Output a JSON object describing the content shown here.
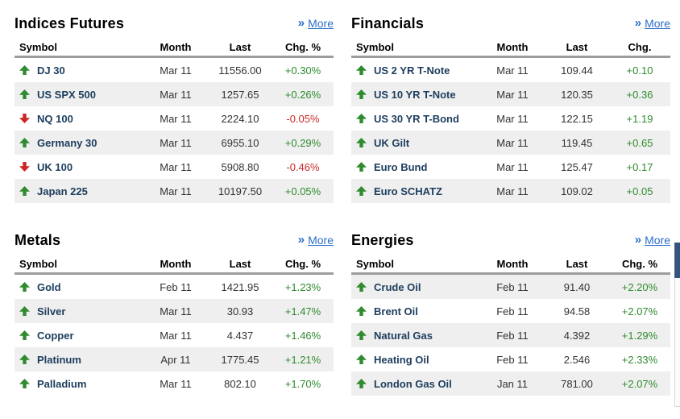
{
  "more_label": "More",
  "colors": {
    "link_blue": "#2a6dc9",
    "symbol_navy": "#1c3d5d",
    "up_green": "#2e8b2e",
    "down_red": "#cf2525",
    "positive_text": "#2e8b2e",
    "negative_text": "#cc2929",
    "row_stripe": "#efefef",
    "header_rule": "#9c9c9c"
  },
  "panels": [
    {
      "title": "Indices Futures",
      "columns": [
        "Symbol",
        "Month",
        "Last",
        "Chg. %"
      ],
      "rows": [
        {
          "direction": "up",
          "symbol": "DJ 30",
          "month": "Mar 11",
          "last": "11556.00",
          "change": "+0.30%",
          "shaded": false
        },
        {
          "direction": "up",
          "symbol": "US SPX 500",
          "month": "Mar 11",
          "last": "1257.65",
          "change": "+0.26%",
          "shaded": true
        },
        {
          "direction": "down",
          "symbol": "NQ 100",
          "month": "Mar 11",
          "last": "2224.10",
          "change": "-0.05%",
          "shaded": false
        },
        {
          "direction": "up",
          "symbol": "Germany 30",
          "month": "Mar 11",
          "last": "6955.10",
          "change": "+0.29%",
          "shaded": true
        },
        {
          "direction": "down",
          "symbol": "UK 100",
          "month": "Mar 11",
          "last": "5908.80",
          "change": "-0.46%",
          "shaded": false
        },
        {
          "direction": "up",
          "symbol": "Japan 225",
          "month": "Mar 11",
          "last": "10197.50",
          "change": "+0.05%",
          "shaded": true
        }
      ]
    },
    {
      "title": "Financials",
      "columns": [
        "Symbol",
        "Month",
        "Last",
        "Chg."
      ],
      "rows": [
        {
          "direction": "up",
          "symbol": "US 2 YR T-Note",
          "month": "Mar 11",
          "last": "109.44",
          "change": "+0.10",
          "shaded": false
        },
        {
          "direction": "up",
          "symbol": "US 10 YR T-Note",
          "month": "Mar 11",
          "last": "120.35",
          "change": "+0.36",
          "shaded": true
        },
        {
          "direction": "up",
          "symbol": "US 30 YR T-Bond",
          "month": "Mar 11",
          "last": "122.15",
          "change": "+1.19",
          "shaded": false
        },
        {
          "direction": "up",
          "symbol": "UK Gilt",
          "month": "Mar 11",
          "last": "119.45",
          "change": "+0.65",
          "shaded": true
        },
        {
          "direction": "up",
          "symbol": "Euro Bund",
          "month": "Mar 11",
          "last": "125.47",
          "change": "+0.17",
          "shaded": false
        },
        {
          "direction": "up",
          "symbol": "Euro SCHATZ",
          "month": "Mar 11",
          "last": "109.02",
          "change": "+0.05",
          "shaded": true
        }
      ]
    },
    {
      "title": "Metals",
      "columns": [
        "Symbol",
        "Month",
        "Last",
        "Chg. %"
      ],
      "rows": [
        {
          "direction": "up",
          "symbol": "Gold",
          "month": "Feb 11",
          "last": "1421.95",
          "change": "+1.23%",
          "shaded": false
        },
        {
          "direction": "up",
          "symbol": "Silver",
          "month": "Mar 11",
          "last": "30.93",
          "change": "+1.47%",
          "shaded": true
        },
        {
          "direction": "up",
          "symbol": "Copper",
          "month": "Mar 11",
          "last": "4.437",
          "change": "+1.46%",
          "shaded": false
        },
        {
          "direction": "up",
          "symbol": "Platinum",
          "month": "Apr 11",
          "last": "1775.45",
          "change": "+1.21%",
          "shaded": true
        },
        {
          "direction": "up",
          "symbol": "Palladium",
          "month": "Mar 11",
          "last": "802.10",
          "change": "+1.70%",
          "shaded": false
        }
      ]
    },
    {
      "title": "Energies",
      "columns": [
        "Symbol",
        "Month",
        "Last",
        "Chg. %"
      ],
      "rows": [
        {
          "direction": "up",
          "symbol": "Crude Oil",
          "month": "Feb 11",
          "last": "91.40",
          "change": "+2.20%",
          "shaded": true
        },
        {
          "direction": "up",
          "symbol": "Brent Oil",
          "month": "Feb 11",
          "last": "94.58",
          "change": "+2.07%",
          "shaded": false
        },
        {
          "direction": "up",
          "symbol": "Natural Gas",
          "month": "Feb 11",
          "last": "4.392",
          "change": "+1.29%",
          "shaded": true
        },
        {
          "direction": "up",
          "symbol": "Heating Oil",
          "month": "Feb 11",
          "last": "2.546",
          "change": "+2.33%",
          "shaded": false
        },
        {
          "direction": "up",
          "symbol": "London Gas Oil",
          "month": "Jan 11",
          "last": "781.00",
          "change": "+2.07%",
          "shaded": true
        }
      ]
    }
  ]
}
